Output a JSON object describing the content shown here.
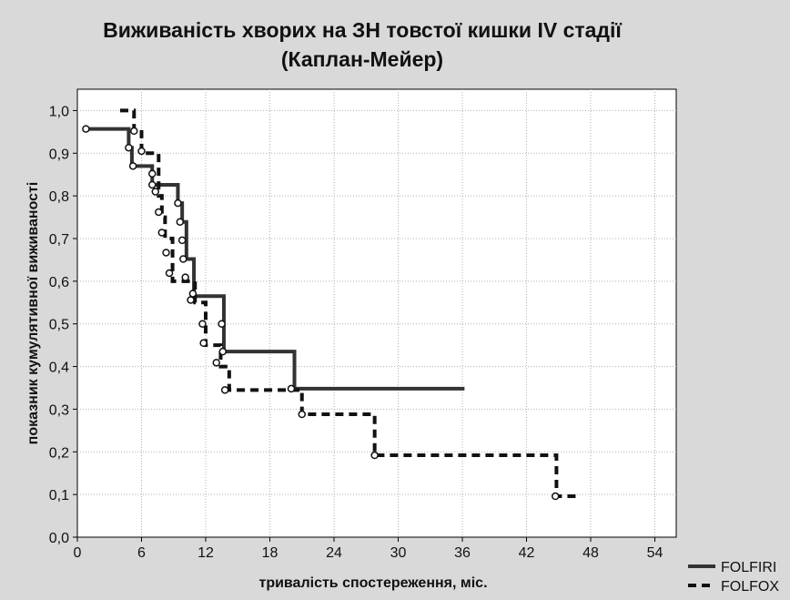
{
  "chart_data": {
    "type": "line",
    "title": "Виживаність хворих на ЗН товстої кишки  IV стадії",
    "subtitle": "(Каплан-Мейер)",
    "xlabel": "тривалість спостереження, міс.",
    "ylabel": "показник кумулятивної виживаності",
    "xlim": [
      0,
      56
    ],
    "ylim": [
      0,
      1.05
    ],
    "x_ticks": [
      0,
      6,
      12,
      18,
      24,
      30,
      36,
      42,
      48,
      54
    ],
    "y_ticks": [
      0.0,
      0.1,
      0.2,
      0.3,
      0.4,
      0.5,
      0.6,
      0.7,
      0.8,
      0.9,
      1.0
    ],
    "x_tick_labels": [
      "0",
      "6",
      "12",
      "18",
      "24",
      "30",
      "36",
      "42",
      "48",
      "54"
    ],
    "y_tick_labels": [
      "0,0",
      "0,1",
      "0,2",
      "0,3",
      "0,4",
      "0,5",
      "0,6",
      "0,7",
      "0,8",
      "0,9",
      "1,0"
    ],
    "grid": true,
    "legend_position": "bottom-right",
    "series": [
      {
        "name": "FOLFIRI",
        "style": "solid",
        "color": "#333333",
        "x": [
          0.8,
          4.8,
          5.1,
          7.0,
          9.4,
          9.8,
          10.2,
          10.9,
          13.7,
          20.3,
          36.2
        ],
        "y": [
          0.957,
          0.913,
          0.87,
          0.826,
          0.783,
          0.739,
          0.652,
          0.565,
          0.435,
          0.348,
          0.348
        ],
        "censored": [
          [
            0.8,
            0.957
          ],
          [
            4.8,
            0.913
          ],
          [
            5.2,
            0.87
          ],
          [
            7.0,
            0.852
          ],
          [
            7.0,
            0.826
          ],
          [
            9.4,
            0.783
          ],
          [
            9.6,
            0.739
          ],
          [
            9.8,
            0.696
          ],
          [
            9.9,
            0.652
          ],
          [
            10.1,
            0.609
          ],
          [
            10.6,
            0.556
          ],
          [
            13.5,
            0.5
          ],
          [
            13.6,
            0.435
          ],
          [
            20.0,
            0.348
          ]
        ]
      },
      {
        "name": "FOLFOX",
        "style": "dashed",
        "color": "#111111",
        "x": [
          4.0,
          5.3,
          6.0,
          7.6,
          7.9,
          8.2,
          8.9,
          11.0,
          12.0,
          13.4,
          14.2,
          21.0,
          27.8,
          44.8,
          46.6
        ],
        "y": [
          1.0,
          0.95,
          0.9,
          0.8,
          0.75,
          0.7,
          0.6,
          0.55,
          0.45,
          0.4,
          0.345,
          0.288,
          0.192,
          0.096,
          0.096
        ],
        "censored": [
          [
            5.3,
            0.952
          ],
          [
            6.0,
            0.905
          ],
          [
            7.3,
            0.81
          ],
          [
            7.6,
            0.762
          ],
          [
            7.9,
            0.714
          ],
          [
            8.3,
            0.667
          ],
          [
            8.6,
            0.619
          ],
          [
            10.8,
            0.571
          ],
          [
            11.7,
            0.5
          ],
          [
            11.8,
            0.455
          ],
          [
            13.0,
            0.409
          ],
          [
            13.8,
            0.345
          ],
          [
            21.0,
            0.288
          ],
          [
            27.8,
            0.192
          ],
          [
            44.7,
            0.096
          ]
        ]
      }
    ]
  }
}
